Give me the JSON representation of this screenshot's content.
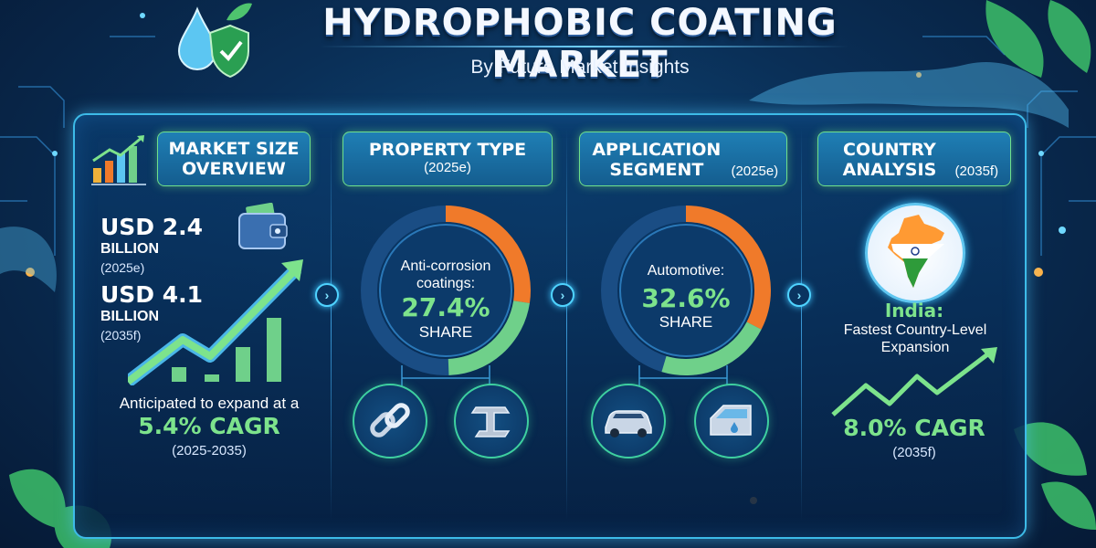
{
  "header": {
    "title": "HYDROPHOBIC COATING MARKET",
    "subtitle": "By Future Market Insights"
  },
  "market_size": {
    "heading": "MARKET SIZE OVERVIEW",
    "value_2025": "USD 2.4",
    "unit_2025": "BILLION",
    "year_2025": "(2025e)",
    "value_2035": "USD 4.1",
    "unit_2035": "BILLION",
    "year_2035": "(2035f)",
    "expand_text": "Anticipated to expand at a",
    "cagr": "5.4% CAGR",
    "cagr_period": "(2025-2035)"
  },
  "property_type": {
    "heading": "PROPERTY TYPE",
    "year": "(2025e)",
    "label": "Anti-corrosion coatings:",
    "share": "27.4%",
    "share_label": "SHARE",
    "share_fraction": 0.274,
    "icons": [
      "chain-link-icon",
      "steel-beam-icon"
    ]
  },
  "application_segment": {
    "heading": "APPLICATION SEGMENT",
    "year": "(2025e)",
    "label": "Automotive:",
    "share": "32.6%",
    "share_label": "SHARE",
    "share_fraction": 0.326,
    "icons": [
      "car-icon",
      "car-door-icon"
    ]
  },
  "country_analysis": {
    "heading": "COUNTRY ANALYSIS",
    "year": "(2035f)",
    "country": "India:",
    "description": "Fastest Country-Level Expansion",
    "cagr": "8.0% CAGR",
    "cagr_year": "(2035f)"
  },
  "colors": {
    "accent_green": "#7de38c",
    "ring_orange": "#f07a2a",
    "ring_green": "#6fd08a",
    "frame_cyan": "#3dbbe8"
  }
}
